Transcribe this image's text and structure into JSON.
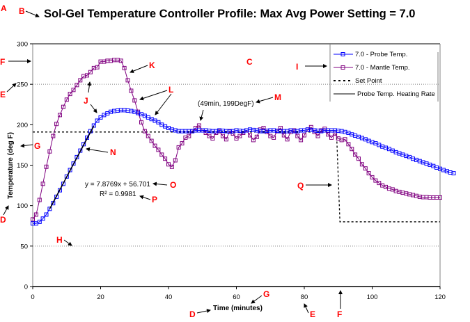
{
  "chart_data": {
    "type": "line",
    "title": "Sol-Gel Temperature Controller Profile:  Max Avg Power Setting = 7.0",
    "xlabel": "Time (minutes)",
    "ylabel": "Temperature (deg F)",
    "xlim": [
      0,
      120
    ],
    "ylim": [
      0,
      300
    ],
    "xticks": [
      "0",
      "20",
      "40",
      "60",
      "80",
      "100",
      "120"
    ],
    "yticks": [
      "0",
      "50",
      "100",
      "150",
      "200",
      "250",
      "300"
    ],
    "grid": {
      "y_major_dotted": [
        50,
        250
      ]
    },
    "legend_position": "top-right",
    "legend": [
      {
        "label": "7.0 - Probe Temp.",
        "style": "blue-line-square"
      },
      {
        "label": "7.0 - Mantle Temp.",
        "style": "purple-line-square"
      },
      {
        "label": "Set Point",
        "style": "dashed-black"
      },
      {
        "label": "Probe Temp. Heating Rate",
        "style": "solid-black"
      }
    ],
    "colors": {
      "probe": "#0000ff",
      "mantle": "#800080",
      "setpoint": "#000000",
      "trend": "#000000",
      "markers": "#ff0000"
    },
    "series": [
      {
        "name": "7.0 - Probe Temp.",
        "x_start": 0,
        "x_step": 1,
        "values": [
          78,
          78,
          80,
          84,
          89,
          96,
          103,
          111,
          119,
          127,
          136,
          144,
          152,
          160,
          168,
          176,
          184,
          192,
          199,
          205,
          209,
          212,
          214,
          216,
          217,
          217.5,
          218,
          218,
          217.5,
          217,
          216,
          214.5,
          213,
          211,
          209,
          207,
          205,
          203,
          200,
          198,
          196,
          194,
          193,
          192,
          192,
          192,
          192,
          192,
          193,
          193,
          193,
          193,
          192.5,
          192,
          192,
          193,
          192.5,
          192,
          191.5,
          192,
          193,
          192.5,
          192,
          193,
          194,
          193.5,
          193,
          192,
          192,
          192.5,
          193,
          193,
          192.5,
          192,
          192,
          192,
          193,
          192,
          192,
          193,
          193,
          194,
          193.5,
          193,
          192.5,
          192,
          193,
          193,
          193,
          193,
          192.5,
          192,
          191,
          190,
          188,
          186.5,
          185,
          183.5,
          182,
          180,
          178.5,
          177,
          175,
          173,
          171.5,
          170,
          168,
          166,
          164.5,
          163,
          161.5,
          160,
          158,
          156.5,
          155,
          153.5,
          152,
          150.5,
          149,
          147,
          145.5,
          144,
          142.5,
          141,
          140
        ]
      },
      {
        "name": "7.0 - Mantle Temp.",
        "x_start": 0,
        "x_step": 1,
        "values": [
          83,
          89,
          107,
          127,
          148,
          167,
          186,
          201,
          212,
          222,
          231,
          238,
          243,
          249,
          255,
          260,
          261,
          265,
          270,
          271,
          278,
          278,
          279,
          279,
          280,
          280,
          279,
          270,
          255,
          242,
          230,
          216,
          203,
          192,
          186,
          180,
          174,
          169,
          163,
          158,
          151,
          148,
          156,
          172,
          177,
          184,
          186,
          192,
          196,
          199,
          193,
          190,
          186,
          183,
          190,
          192,
          186,
          182,
          192,
          189,
          183,
          186,
          190,
          193,
          187,
          181,
          185,
          194,
          196,
          191,
          186,
          184,
          192,
          196,
          187,
          182,
          191,
          193,
          186,
          181,
          187,
          194,
          197,
          191,
          186,
          193,
          195,
          188,
          184,
          189,
          183,
          181,
          182,
          176,
          170,
          163,
          158,
          151,
          146,
          140,
          135,
          131,
          128,
          125,
          123,
          121,
          120,
          118,
          117,
          116,
          115,
          114,
          113,
          112,
          111,
          110.5,
          110.5,
          110,
          110,
          110,
          110
        ]
      },
      {
        "name": "Set Point",
        "points": [
          [
            0,
            191
          ],
          [
            89.5,
            191
          ],
          [
            90.5,
            80
          ],
          [
            120,
            80
          ]
        ]
      },
      {
        "name": "Probe Temp. Heating Rate",
        "type": "linear-trendline",
        "slope": 7.8769,
        "intercept": 56.701,
        "r_squared": 0.9981,
        "x_range": [
          5,
          18
        ]
      }
    ],
    "annotations": [
      {
        "text": "y = 7.8769x + 56.701",
        "x": 18,
        "y": 126
      },
      {
        "text": "R² = 0.9981",
        "x": 18,
        "y": 113
      },
      {
        "text": "(49min, 199DegF)",
        "x": 56,
        "y": 226
      }
    ],
    "marker_labels": [
      "A",
      "B",
      "C",
      "D",
      "E",
      "F",
      "G",
      "H",
      "I",
      "J",
      "K",
      "L",
      "M",
      "N",
      "O",
      "P",
      "Q"
    ]
  }
}
